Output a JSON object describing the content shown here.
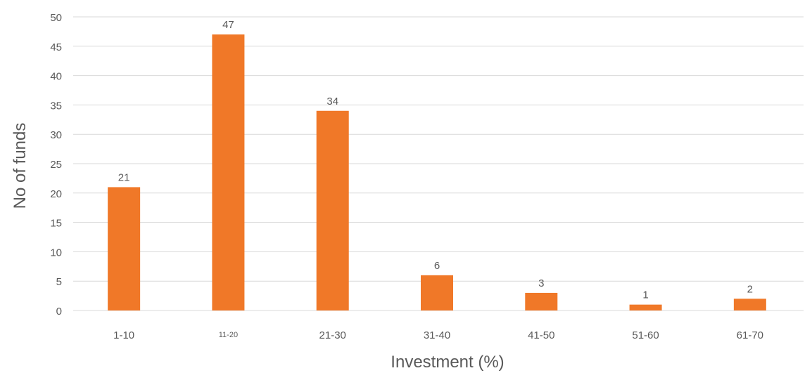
{
  "chart_data": {
    "type": "bar",
    "categories": [
      "1-10",
      "11-20",
      "21-30",
      "31-40",
      "41-50",
      "51-60",
      "61-70"
    ],
    "values": [
      21,
      47,
      34,
      6,
      3,
      1,
      2
    ],
    "data_labels": [
      "21",
      "47",
      "34",
      "6",
      "3",
      "1",
      "2"
    ],
    "title": "",
    "xlabel": "Investment (%)",
    "ylabel": "No of funds",
    "ylim": [
      0,
      50
    ],
    "yticks": [
      "0",
      "5",
      "10",
      "15",
      "20",
      "25",
      "30",
      "35",
      "40",
      "45",
      "50"
    ],
    "grid": true,
    "legend": "none",
    "bar_color": "#f07828"
  }
}
